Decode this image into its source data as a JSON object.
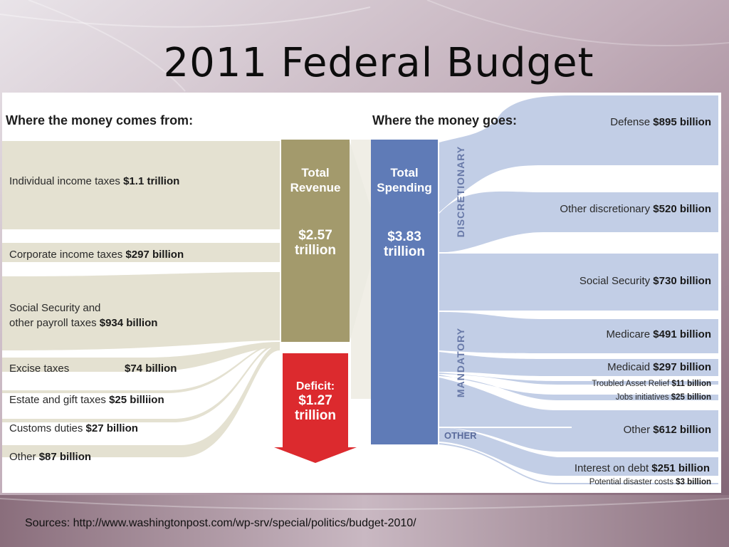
{
  "slide": {
    "title": "2011 Federal Budget",
    "footer": "Sources: http://www.washingtonpost.com/wp-srv/special/politics/budget-2010/"
  },
  "headers": {
    "left": "Where the money comes from:",
    "right": "Where the money goes:"
  },
  "revenue_sources": [
    {
      "label": "Individual income taxes ",
      "amount": "$1.1 trillion"
    },
    {
      "label": "Corporate income taxes ",
      "amount": "$297 billion"
    },
    {
      "label": "Social Security and",
      "label2": "other payroll taxes ",
      "amount": "$934 billion"
    },
    {
      "label": "Excise taxes",
      "amount": "$74 billion"
    },
    {
      "label": "Estate and gift taxes ",
      "amount": "$25 billiion"
    },
    {
      "label": "Customs duties ",
      "amount": "$27 billion"
    },
    {
      "label": "Other ",
      "amount": "$87 billion"
    }
  ],
  "revenue_box": {
    "title1": "Total",
    "title2": "Revenue",
    "value1": "$2.57",
    "value2": "trillion"
  },
  "deficit_box": {
    "title": "Deficit:",
    "value1": "$1.27",
    "value2": "trillion"
  },
  "spending_box": {
    "title1": "Total",
    "title2": "Spending",
    "value1": "$3.83",
    "value2": "trillion"
  },
  "groups": {
    "discretionary": "DISCRETIONARY",
    "mandatory": "MANDATORY",
    "other": "OTHER"
  },
  "spending": [
    {
      "label": "Defense ",
      "amount": "$895 billion"
    },
    {
      "label": "Other discretionary ",
      "amount": "$520 billion"
    },
    {
      "label": "Social Security ",
      "amount": "$730 billion"
    },
    {
      "label": "Medicare ",
      "amount": "$491 billion"
    },
    {
      "label": "Medicaid ",
      "amount": "$297 billion"
    },
    {
      "label": "Troubled Asset Relief  ",
      "amount": "$11 billion"
    },
    {
      "label": "Jobs initiatives ",
      "amount": "$25 billion"
    },
    {
      "label": "Other  ",
      "amount": "$612 billion"
    },
    {
      "label": "Interest on debt ",
      "amount": "$251 billion"
    },
    {
      "label": "Potential disaster costs ",
      "amount": "$3 billion"
    }
  ],
  "colors": {
    "revenue_flow": "#e4e1d1",
    "revenue_box": "#a39a6c",
    "deficit_box": "#dc2a2e",
    "spending_box": "#5f7bb7",
    "spending_flow": "#c2cee6"
  }
}
